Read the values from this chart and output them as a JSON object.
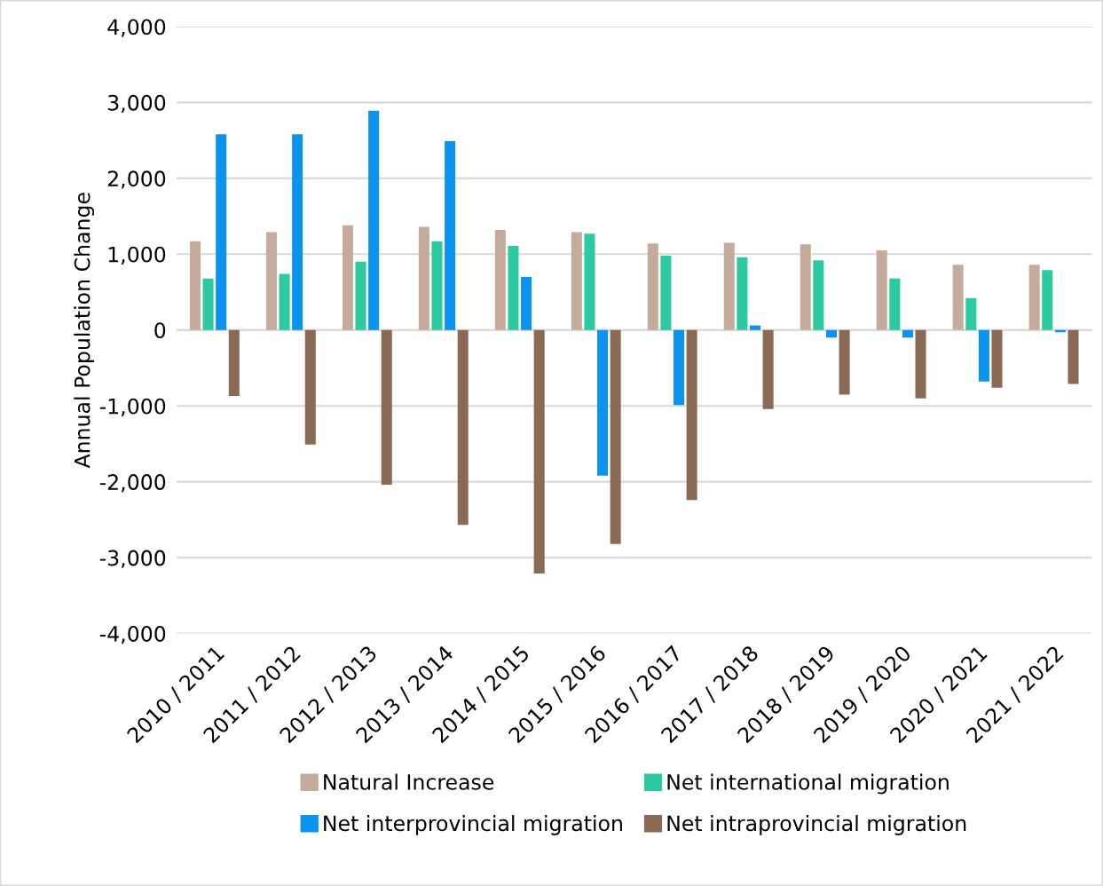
{
  "chart_data": {
    "type": "bar",
    "ylabel": "Annual Population Change",
    "categories": [
      "2010 / 2011",
      "2011 / 2012",
      "2012 / 2013",
      "2013 / 2014",
      "2014 / 2015",
      "2015 / 2016",
      "2016 / 2017",
      "2017 / 2018",
      "2018 / 2019",
      "2019 / 2020",
      "2020 / 2021",
      "2021 / 2022"
    ],
    "series": [
      {
        "name": "Natural Increase",
        "color": "#c4ab9c",
        "values": [
          1170,
          1290,
          1380,
          1360,
          1320,
          1290,
          1140,
          1150,
          1130,
          1050,
          860,
          860
        ]
      },
      {
        "name": "Net international migration",
        "color": "#2dc9a0",
        "values": [
          680,
          740,
          900,
          1170,
          1110,
          1270,
          980,
          960,
          920,
          680,
          420,
          790
        ]
      },
      {
        "name": "Net interprovincial migration",
        "color": "#0a94ef",
        "values": [
          2580,
          2580,
          2890,
          2490,
          700,
          -1920,
          -990,
          60,
          -100,
          -100,
          -680,
          -30
        ]
      },
      {
        "name": "Net intraprovincial migration",
        "color": "#8a6a55",
        "values": [
          -870,
          -1510,
          -2040,
          -2570,
          -3210,
          -2820,
          -2240,
          -1040,
          -850,
          -900,
          -760,
          -710
        ]
      }
    ],
    "ylim": [
      -4000,
      4000
    ],
    "yticks": [
      {
        "value": -4000,
        "label": "-4,000"
      },
      {
        "value": -3000,
        "label": "-3,000"
      },
      {
        "value": -2000,
        "label": "-2,000"
      },
      {
        "value": -1000,
        "label": "-1,000"
      },
      0,
      {
        "value": 1000,
        "label": "1,000"
      },
      {
        "value": 2000,
        "label": "2,000"
      },
      {
        "value": 3000,
        "label": "3,000"
      },
      {
        "value": 4000,
        "label": "4,000"
      }
    ],
    "grid": "y",
    "legend": "bottom"
  }
}
